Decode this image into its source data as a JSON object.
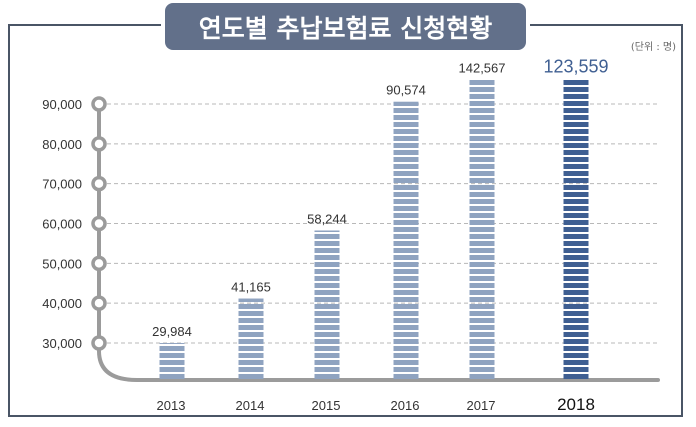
{
  "chart_data": {
    "type": "bar",
    "title": "연도별 추납보험료 신청현황",
    "unit": "(단위 : 명)",
    "categories": [
      "2013",
      "2014",
      "2015",
      "2016",
      "2017",
      "2018"
    ],
    "values": [
      29984,
      41165,
      58244,
      90574,
      142567,
      123559
    ],
    "data_labels": [
      "29,984",
      "41,165",
      "58,244",
      "90,574",
      "142,567",
      "123,559"
    ],
    "y_ticks": [
      30000,
      40000,
      50000,
      60000,
      70000,
      80000,
      90000
    ],
    "y_tick_labels": [
      "30,000",
      "40,000",
      "50,000",
      "60,000",
      "70,000",
      "80,000",
      "90,000"
    ],
    "highlight_category": "2018",
    "grid": true,
    "colors": {
      "bar": "#8fa3c0",
      "highlight_bar": "#3f5f92",
      "title_bg": "#62708a",
      "axis": "#9b9b9b",
      "highlight_label": "#3f5f92"
    }
  }
}
